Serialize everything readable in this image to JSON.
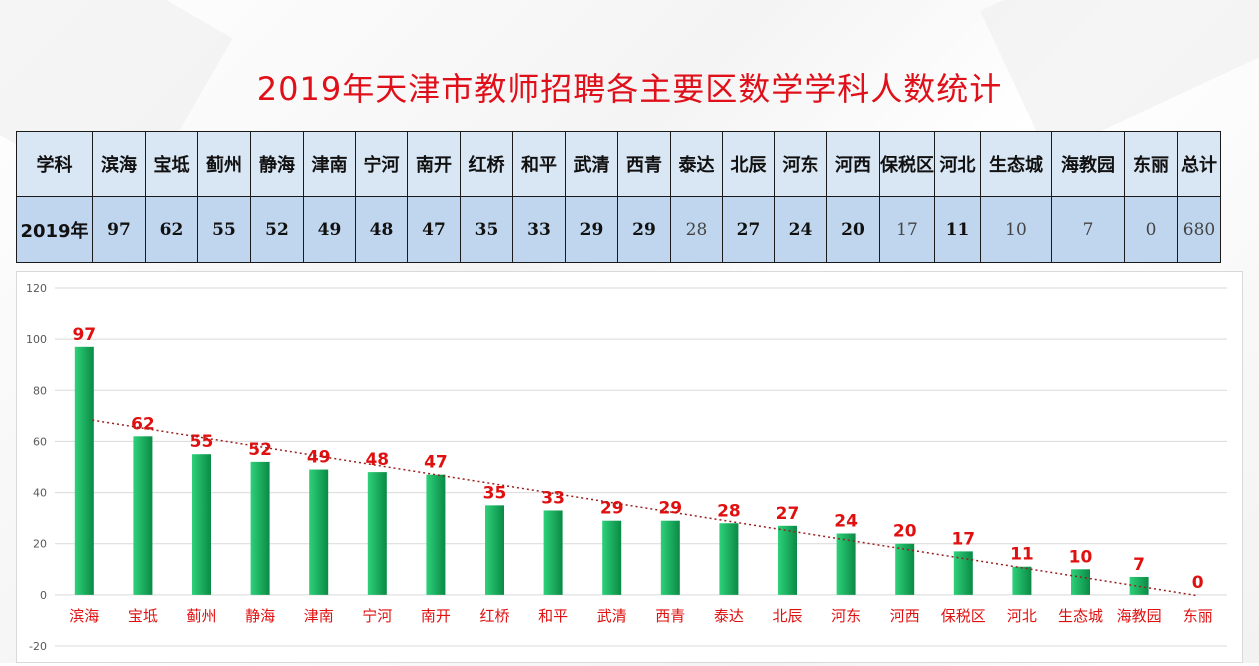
{
  "title": "2019年天津市教师招聘各主要区数学学科人数统计",
  "table": {
    "header_label": "学科",
    "row_label": "2019年",
    "total_label": "总计",
    "total_value": "680"
  },
  "chart_data": {
    "type": "bar",
    "title": "2019年天津市教师招聘各主要区数学学科人数统计",
    "categories": [
      "滨海",
      "宝坻",
      "蓟州",
      "静海",
      "津南",
      "宁河",
      "南开",
      "红桥",
      "和平",
      "武清",
      "西青",
      "泰达",
      "北辰",
      "河东",
      "河西",
      "保税区",
      "河北",
      "生态城",
      "海教园",
      "东丽"
    ],
    "values": [
      97,
      62,
      55,
      52,
      49,
      48,
      47,
      35,
      33,
      29,
      29,
      28,
      27,
      24,
      20,
      17,
      11,
      10,
      7,
      0
    ],
    "ylim": [
      -20,
      120
    ],
    "yticks": [
      -20,
      0,
      20,
      40,
      60,
      80,
      100,
      120
    ],
    "grid": true,
    "trendline": "linear",
    "colors": {
      "bar_light": "#2ed17a",
      "bar_dark": "#0a8a45",
      "label": "#e01010",
      "trend": "#9a1f1f"
    }
  }
}
